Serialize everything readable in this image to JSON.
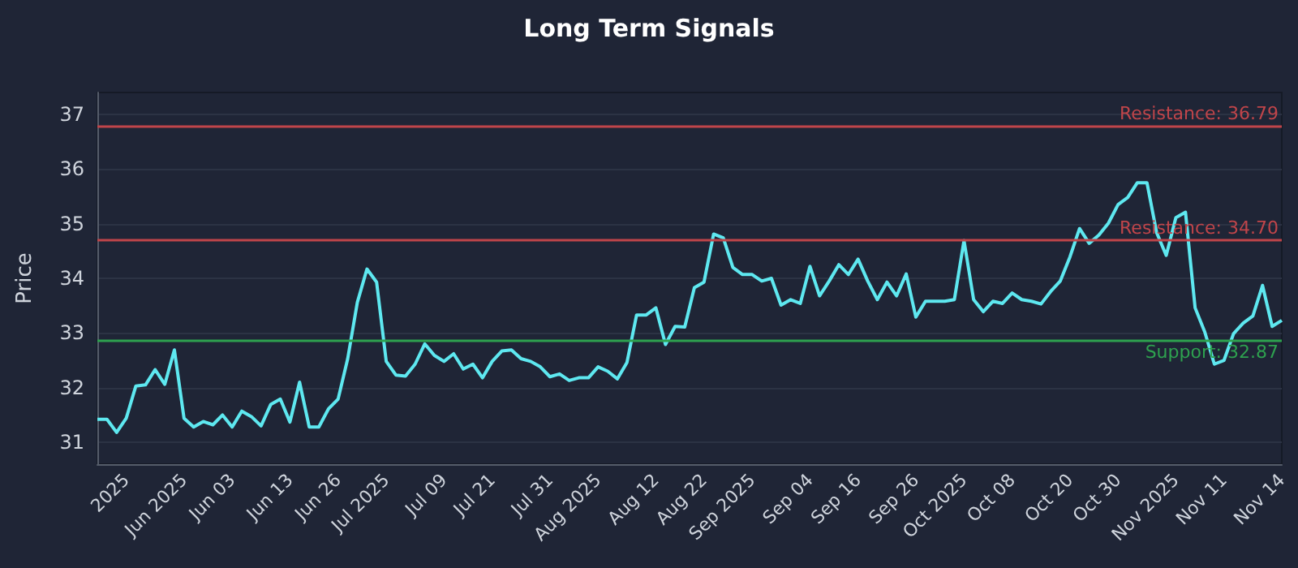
{
  "chart_data": {
    "type": "line",
    "title": "Long Term Signals",
    "ylabel": "Price",
    "categories": [
      null,
      null,
      null,
      "2025",
      null,
      null,
      null,
      null,
      null,
      "Jun 2025",
      null,
      null,
      null,
      null,
      "Jun 03",
      null,
      null,
      null,
      null,
      null,
      "Jun 13",
      null,
      null,
      null,
      null,
      "Jun 26",
      null,
      null,
      null,
      null,
      "Jul 2025",
      null,
      null,
      null,
      null,
      null,
      "Jul 09",
      null,
      null,
      null,
      null,
      "Jul 21",
      null,
      null,
      null,
      null,
      null,
      "Jul 31",
      null,
      null,
      null,
      null,
      "Aug 2025",
      null,
      null,
      null,
      null,
      null,
      "Aug 12",
      null,
      null,
      null,
      null,
      "Aug 22",
      null,
      null,
      null,
      null,
      "Sep 2025",
      null,
      null,
      null,
      null,
      null,
      "Sep 04",
      null,
      null,
      null,
      null,
      "Sep 16",
      null,
      null,
      null,
      null,
      null,
      "Sep 26",
      null,
      null,
      null,
      null,
      "Oct 2025",
      null,
      null,
      null,
      null,
      "Oct 08",
      null,
      null,
      null,
      null,
      null,
      "Oct 20",
      null,
      null,
      null,
      null,
      "Oct 30",
      null,
      null,
      null,
      null,
      null,
      "Nov 2025",
      null,
      null,
      null,
      null,
      "Nov 11",
      null,
      null,
      null,
      null,
      null,
      "Nov 14"
    ],
    "series": [
      {
        "color": "#5ee8f0",
        "values": [
          31.42,
          31.42,
          31.18,
          31.44,
          32.03,
          32.05,
          32.33,
          32.06,
          32.69,
          31.44,
          31.28,
          31.38,
          31.32,
          31.5,
          31.28,
          31.57,
          31.47,
          31.3,
          31.69,
          31.79,
          31.37,
          32.1,
          31.28,
          31.28,
          31.61,
          31.79,
          32.53,
          33.56,
          34.17,
          33.93,
          32.48,
          32.23,
          32.21,
          32.43,
          32.8,
          32.59,
          32.48,
          32.62,
          32.34,
          32.43,
          32.18,
          32.48,
          32.67,
          32.69,
          32.53,
          32.48,
          32.38,
          32.2,
          32.25,
          32.13,
          32.18,
          32.18,
          32.38,
          32.3,
          32.16,
          32.46,
          33.33,
          33.33,
          33.46,
          32.79,
          33.12,
          33.11,
          33.83,
          33.93,
          34.81,
          34.74,
          34.2,
          34.07,
          34.07,
          33.95,
          34.0,
          33.51,
          33.61,
          33.54,
          34.22,
          33.68,
          33.95,
          34.25,
          34.07,
          34.35,
          33.95,
          33.61,
          33.93,
          33.68,
          34.08,
          33.29,
          33.58,
          33.58,
          33.58,
          33.61,
          34.69,
          33.61,
          33.39,
          33.58,
          33.54,
          33.73,
          33.61,
          33.58,
          33.53,
          33.76,
          33.95,
          34.39,
          34.91,
          34.64,
          34.79,
          35.01,
          35.35,
          35.48,
          35.75,
          35.75,
          34.84,
          34.42,
          35.11,
          35.21,
          33.46,
          33.02,
          32.43,
          32.5,
          32.99,
          33.18,
          33.31,
          33.87,
          33.12,
          33.23
        ]
      }
    ],
    "ylim": [
      30.6,
      37.4
    ],
    "yticks": [
      31,
      32,
      33,
      34,
      35,
      36,
      37
    ],
    "ref_lines": [
      {
        "axis": "y",
        "value": 36.79,
        "label": "Resistance: 36.79",
        "color": "#c0454a"
      },
      {
        "axis": "y",
        "value": 34.7,
        "label": "Resistance: 34.70",
        "color": "#c0454a"
      },
      {
        "axis": "y",
        "value": 32.87,
        "label": "Support: 32.87",
        "color": "#2ea14f"
      }
    ],
    "grid": "y",
    "marker": "none",
    "line_style": "solid"
  }
}
